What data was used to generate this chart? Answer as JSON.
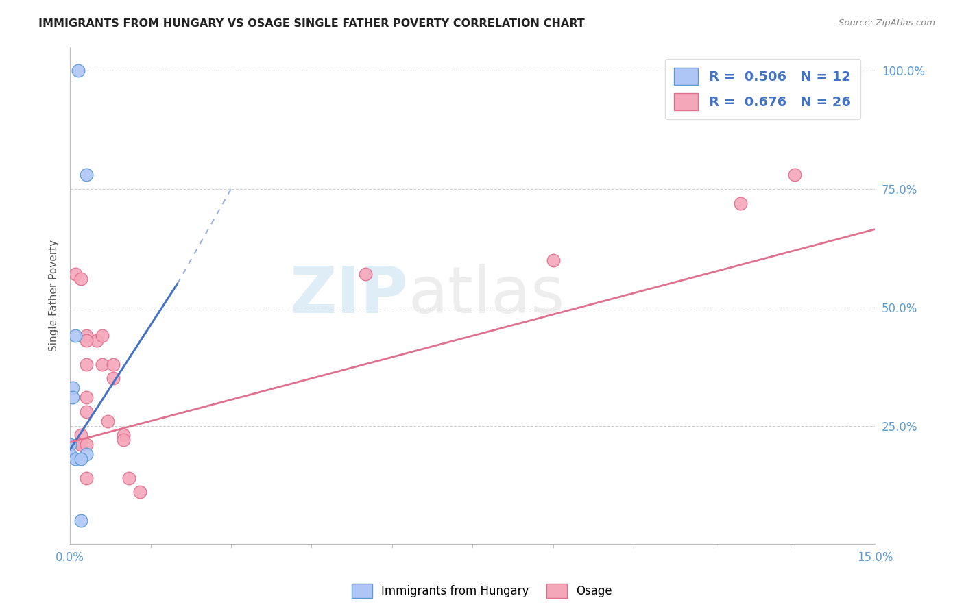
{
  "title": "IMMIGRANTS FROM HUNGARY VS OSAGE SINGLE FATHER POVERTY CORRELATION CHART",
  "source": "Source: ZipAtlas.com",
  "ylabel": "Single Father Poverty",
  "legend_entries": [
    {
      "label": "Immigrants from Hungary",
      "color": "#aec6f6",
      "R": 0.506,
      "N": 12
    },
    {
      "label": "Osage",
      "color": "#f4a7b9",
      "R": 0.676,
      "N": 26
    }
  ],
  "watermark_zip": "ZIP",
  "watermark_atlas": "atlas",
  "blue_scatter_x": [
    0.0015,
    0.003,
    0.001,
    0.0005,
    0.0005,
    0.0,
    0.0,
    0.0,
    0.003,
    0.001,
    0.002,
    0.002
  ],
  "blue_scatter_y": [
    1.0,
    0.78,
    0.44,
    0.33,
    0.31,
    0.21,
    0.21,
    0.19,
    0.19,
    0.18,
    0.18,
    0.05
  ],
  "pink_scatter_x": [
    0.001,
    0.003,
    0.003,
    0.005,
    0.006,
    0.006,
    0.003,
    0.003,
    0.002,
    0.002,
    0.002,
    0.003,
    0.003,
    0.008,
    0.008,
    0.007,
    0.01,
    0.01,
    0.011,
    0.013,
    0.135,
    0.125,
    0.09,
    0.055,
    0.002,
    0.003
  ],
  "pink_scatter_y": [
    0.57,
    0.44,
    0.38,
    0.43,
    0.44,
    0.38,
    0.31,
    0.28,
    0.23,
    0.21,
    0.21,
    0.21,
    0.14,
    0.38,
    0.35,
    0.26,
    0.23,
    0.22,
    0.14,
    0.11,
    0.78,
    0.72,
    0.6,
    0.57,
    0.56,
    0.43
  ],
  "blue_solid_line_x": [
    0.0,
    0.02
  ],
  "blue_solid_line_y": [
    0.2,
    0.55
  ],
  "blue_dash_line_x": [
    0.02,
    0.03
  ],
  "blue_dash_line_y": [
    0.55,
    0.75
  ],
  "pink_line_x": [
    0.0,
    0.15
  ],
  "pink_line_y": [
    0.215,
    0.665
  ],
  "blue_color": "#5b9bd5",
  "blue_scatter_color": "#aec6f6",
  "pink_scatter_color": "#f4a7b9",
  "blue_line_color": "#4472c4",
  "pink_line_color": "#e07090",
  "background_color": "#ffffff",
  "grid_color": "#d0d0d0",
  "xlim": [
    0.0,
    0.15
  ],
  "ylim": [
    0.0,
    1.05
  ],
  "xtick_show": [
    0.0,
    0.15
  ],
  "xtick_labels": [
    "0.0%",
    "15.0%"
  ],
  "ytick_right": [
    1.0,
    0.75,
    0.5,
    0.25
  ],
  "ytick_right_labels": [
    "100.0%",
    "75.0%",
    "50.0%",
    "25.0%"
  ]
}
